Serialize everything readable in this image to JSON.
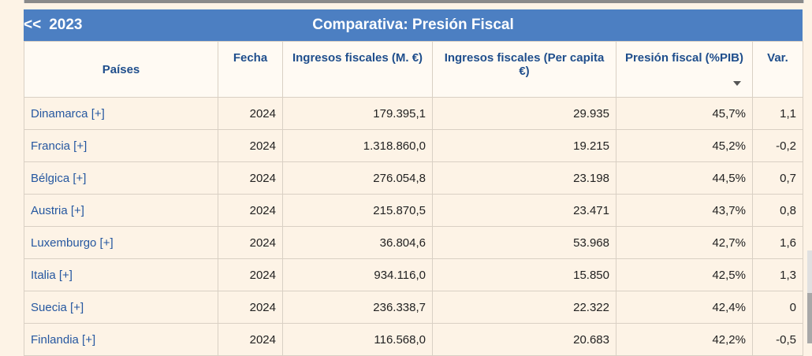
{
  "header": {
    "prev_arrows": "<<",
    "prev_year": "2023",
    "title": "Comparativa: Presión Fiscal"
  },
  "columns": [
    "Países",
    "Fecha",
    "Ingresos fiscales (M. €)",
    "Ingresos fiscales (Per capita €)",
    "Presión fiscal (%PIB)",
    "Var."
  ],
  "rows": [
    {
      "country": "Dinamarca [+]",
      "date": "2024",
      "revenue": "179.395,1",
      "per_capita": "29.935",
      "pressure": "45,7%",
      "var": "1,1"
    },
    {
      "country": "Francia [+]",
      "date": "2024",
      "revenue": "1.318.860,0",
      "per_capita": "19.215",
      "pressure": "45,2%",
      "var": "-0,2"
    },
    {
      "country": "Bélgica [+]",
      "date": "2024",
      "revenue": "276.054,8",
      "per_capita": "23.198",
      "pressure": "44,5%",
      "var": "0,7"
    },
    {
      "country": "Austria [+]",
      "date": "2024",
      "revenue": "215.870,5",
      "per_capita": "23.471",
      "pressure": "43,7%",
      "var": "0,8"
    },
    {
      "country": "Luxemburgo [+]",
      "date": "2024",
      "revenue": "36.804,6",
      "per_capita": "53.968",
      "pressure": "42,7%",
      "var": "1,6"
    },
    {
      "country": "Italia [+]",
      "date": "2024",
      "revenue": "934.116,0",
      "per_capita": "15.850",
      "pressure": "42,5%",
      "var": "1,3"
    },
    {
      "country": "Suecia [+]",
      "date": "2024",
      "revenue": "236.338,7",
      "per_capita": "22.322",
      "pressure": "42,4%",
      "var": "0"
    },
    {
      "country": "Finlandia [+]",
      "date": "2024",
      "revenue": "116.568,0",
      "per_capita": "20.683",
      "pressure": "42,2%",
      "var": "-0,5"
    }
  ]
}
